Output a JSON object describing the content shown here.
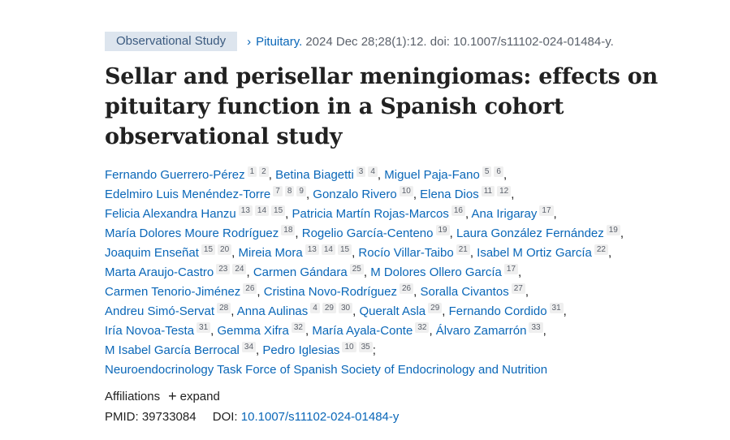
{
  "meta": {
    "pub_type": "Observational Study",
    "chevron": "›",
    "journal": "Pituitary.",
    "citation": "2024 Dec 28;28(1):12. doi: 10.1007/s11102-024-01484-y."
  },
  "title": "Sellar and perisellar meningiomas: effects on pituitary function in a Spanish cohort observational study",
  "author_lines": [
    [
      {
        "name": "Fernando Guerrero-Pérez",
        "sups": [
          "1",
          "2"
        ]
      },
      {
        "name": "Betina Biagetti",
        "sups": [
          "3",
          "4"
        ]
      },
      {
        "name": "Miguel Paja-Fano",
        "sups": [
          "5",
          "6"
        ]
      }
    ],
    [
      {
        "name": "Edelmiro Luis Menéndez-Torre",
        "sups": [
          "7",
          "8",
          "9"
        ]
      },
      {
        "name": "Gonzalo Rivero",
        "sups": [
          "10"
        ]
      },
      {
        "name": "Elena Dios",
        "sups": [
          "11",
          "12"
        ]
      }
    ],
    [
      {
        "name": "Felicia Alexandra Hanzu",
        "sups": [
          "13",
          "14",
          "15"
        ]
      },
      {
        "name": "Patricia Martín Rojas-Marcos",
        "sups": [
          "16"
        ]
      },
      {
        "name": "Ana Irigaray",
        "sups": [
          "17"
        ]
      }
    ],
    [
      {
        "name": "María Dolores Moure Rodríguez",
        "sups": [
          "18"
        ]
      },
      {
        "name": "Rogelio García-Centeno",
        "sups": [
          "19"
        ]
      },
      {
        "name": "Laura González Fernández",
        "sups": [
          "19"
        ]
      }
    ],
    [
      {
        "name": "Joaquim Enseñat",
        "sups": [
          "15",
          "20"
        ]
      },
      {
        "name": "Mireia Mora",
        "sups": [
          "13",
          "14",
          "15"
        ]
      },
      {
        "name": "Rocío Villar-Taibo",
        "sups": [
          "21"
        ]
      },
      {
        "name": "Isabel M Ortiz García",
        "sups": [
          "22"
        ]
      }
    ],
    [
      {
        "name": "Marta Araujo-Castro",
        "sups": [
          "23",
          "24"
        ]
      },
      {
        "name": "Carmen Gándara",
        "sups": [
          "25"
        ]
      },
      {
        "name": "M Dolores Ollero García",
        "sups": [
          "17"
        ]
      }
    ],
    [
      {
        "name": "Carmen Tenorio-Jiménez",
        "sups": [
          "26"
        ]
      },
      {
        "name": "Cristina Novo-Rodríguez",
        "sups": [
          "26"
        ]
      },
      {
        "name": "Soralla Civantos",
        "sups": [
          "27"
        ]
      }
    ],
    [
      {
        "name": "Andreu Simó-Servat",
        "sups": [
          "28"
        ]
      },
      {
        "name": "Anna Aulinas",
        "sups": [
          "4",
          "29",
          "30"
        ]
      },
      {
        "name": "Queralt Asla",
        "sups": [
          "29"
        ]
      },
      {
        "name": "Fernando Cordido",
        "sups": [
          "31"
        ]
      }
    ],
    [
      {
        "name": "Iría Novoa-Testa",
        "sups": [
          "31"
        ]
      },
      {
        "name": "Gemma Xifra",
        "sups": [
          "32"
        ]
      },
      {
        "name": "María Ayala-Conte",
        "sups": [
          "32"
        ]
      },
      {
        "name": "Álvaro Zamarrón",
        "sups": [
          "33"
        ]
      }
    ],
    [
      {
        "name": "M Isabel García Berrocal",
        "sups": [
          "34"
        ]
      },
      {
        "name": "Pedro Iglesias",
        "sups": [
          "10",
          "35"
        ]
      }
    ]
  ],
  "separators": {
    "comma": ",",
    "semicolon": ";"
  },
  "collective": "Neuroendocrinology Task Force of Spanish Society of Endocrinology and Nutrition",
  "affiliations": {
    "label": "Affiliations",
    "plus": "+",
    "expand": "expand"
  },
  "ids": {
    "pmid_label": "PMID:",
    "pmid": "39733084",
    "doi_label": "DOI:",
    "doi": "10.1007/s11102-024-01484-y"
  }
}
